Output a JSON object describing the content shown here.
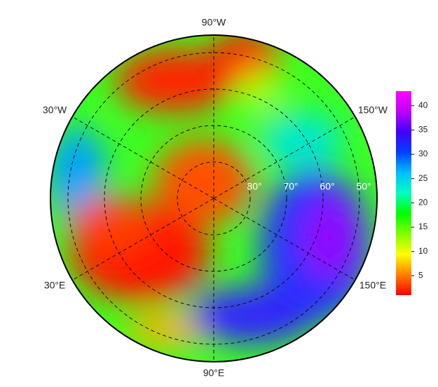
{
  "map": {
    "longitude_labels": [
      {
        "value": -90,
        "label": "90°W"
      },
      {
        "value": -30,
        "label": "30°W"
      },
      {
        "value": -150,
        "label": "150°W"
      },
      {
        "value": 30,
        "label": "30°E"
      },
      {
        "value": 150,
        "label": "150°E"
      },
      {
        "value": 90,
        "label": "90°E"
      }
    ],
    "latitude_labels": [
      {
        "value": 80,
        "label": "80°"
      },
      {
        "value": 70,
        "label": "70°"
      },
      {
        "value": 60,
        "label": "60°"
      },
      {
        "value": 50,
        "label": "50°"
      }
    ],
    "colorbar": {
      "lim": [
        1,
        43
      ],
      "ticks": [
        5,
        10,
        15,
        20,
        25,
        30,
        35,
        40
      ],
      "colors": [
        "#ff0000",
        "#ff7f00",
        "#ffff00",
        "#7fff00",
        "#00ff00",
        "#00ffbf",
        "#00bfff",
        "#0040ff",
        "#4000ff",
        "#bf00ff",
        "#ff00ff"
      ]
    }
  }
}
